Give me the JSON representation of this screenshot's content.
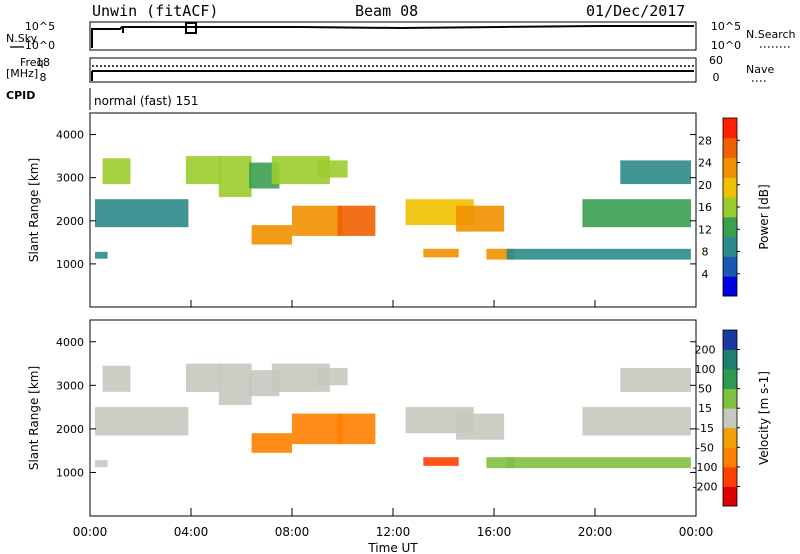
{
  "header": {
    "station": "Unwin (fitACF)",
    "beam": "Beam 08",
    "date": "01/Dec/2017"
  },
  "params_panel": {
    "nsky_label": "N.Sky",
    "nsearch_label": "N.Search",
    "nsky_ticks": [
      "10^5",
      "10^0"
    ],
    "nsearch_ticks": [
      "10^5",
      "10^0"
    ],
    "freq_label": "Freq.",
    "freq_unit": "[MHz]",
    "freq_ticks": [
      "18",
      "8"
    ],
    "nave_label": "Nave",
    "nave_ticks": [
      "60",
      "0"
    ],
    "cpid_label": "CPID",
    "cpid_value": "normal (fast) 151"
  },
  "x_axis": {
    "label": "Time UT",
    "ticks": [
      "00:00",
      "04:00",
      "08:00",
      "12:00",
      "16:00",
      "20:00",
      "00:00"
    ]
  },
  "chart_data": [
    {
      "type": "heatmap",
      "name": "power",
      "ylabel": "Slant Range [km]",
      "yticks": [
        "4000",
        "3000",
        "2000",
        "1000"
      ],
      "ylim": [
        0,
        4500
      ],
      "xlim": [
        0,
        24
      ],
      "colorbar": {
        "label": "Power [dB]",
        "ticks": [
          "28",
          "24",
          "20",
          "16",
          "12",
          "8",
          "4"
        ],
        "colors": [
          "#0000e0",
          "#1858b0",
          "#2c8a8a",
          "#3aa050",
          "#9ccc2c",
          "#f0c000",
          "#f09000",
          "#f06000",
          "#ff2000"
        ]
      },
      "regions": [
        {
          "t": [
            0.2,
            0.7
          ],
          "r": [
            1120,
            1280
          ],
          "level": 0.2
        },
        {
          "t": [
            0.2,
            3.9
          ],
          "r": [
            1850,
            2500
          ],
          "level": 0.3
        },
        {
          "t": [
            0.5,
            1.6
          ],
          "r": [
            2850,
            3450
          ],
          "level": 0.45
        },
        {
          "t": [
            3.8,
            5.2
          ],
          "r": [
            2850,
            3500
          ],
          "level": 0.55
        },
        {
          "t": [
            5.1,
            6.4
          ],
          "r": [
            2550,
            3500
          ],
          "level": 0.5
        },
        {
          "t": [
            6.3,
            7.5
          ],
          "r": [
            2750,
            3350
          ],
          "level": 0.35
        },
        {
          "t": [
            7.2,
            9.5
          ],
          "r": [
            2850,
            3500
          ],
          "level": 0.5
        },
        {
          "t": [
            9.0,
            10.2
          ],
          "r": [
            3000,
            3400
          ],
          "level": 0.55
        },
        {
          "t": [
            6.4,
            8.0
          ],
          "r": [
            1450,
            1900
          ],
          "level": 0.7
        },
        {
          "t": [
            8.0,
            10.0
          ],
          "r": [
            1650,
            2350
          ],
          "level": 0.8
        },
        {
          "t": [
            9.8,
            11.3
          ],
          "r": [
            1650,
            2350
          ],
          "level": 0.92
        },
        {
          "t": [
            12.5,
            15.2
          ],
          "r": [
            1900,
            2500
          ],
          "level": 0.6
        },
        {
          "t": [
            13.2,
            14.6
          ],
          "r": [
            1150,
            1350
          ],
          "level": 0.7
        },
        {
          "t": [
            14.5,
            16.4
          ],
          "r": [
            1750,
            2350
          ],
          "level": 0.75
        },
        {
          "t": [
            15.7,
            16.8
          ],
          "r": [
            1100,
            1350
          ],
          "level": 0.7
        },
        {
          "t": [
            16.5,
            23.8
          ],
          "r": [
            1100,
            1350
          ],
          "level": 0.3
        },
        {
          "t": [
            19.5,
            23.8
          ],
          "r": [
            1850,
            2500
          ],
          "level": 0.35
        },
        {
          "t": [
            21.0,
            23.8
          ],
          "r": [
            2850,
            3400
          ],
          "level": 0.3
        }
      ]
    },
    {
      "type": "heatmap",
      "name": "velocity",
      "ylabel": "Slant Range [km]",
      "yticks": [
        "4000",
        "3000",
        "2000",
        "1000"
      ],
      "ylim": [
        0,
        4500
      ],
      "xlim": [
        0,
        24
      ],
      "colorbar": {
        "label": "Velocity [m s-1]",
        "ticks": [
          "200",
          "100",
          "50",
          "15",
          "-15",
          "-50",
          "-100",
          "-200"
        ],
        "colors": [
          "#e00000",
          "#ff4000",
          "#ff8000",
          "#f0a000",
          "#c8c8c0",
          "#80c040",
          "#2c9a50",
          "#208070",
          "#1a3aa0"
        ]
      },
      "regions": [
        {
          "t": [
            0.2,
            0.7
          ],
          "r": [
            1120,
            1280
          ],
          "level": 0.55
        },
        {
          "t": [
            0.2,
            3.9
          ],
          "r": [
            1850,
            2500
          ],
          "level": 0.5
        },
        {
          "t": [
            0.5,
            1.6
          ],
          "r": [
            2850,
            3450
          ],
          "level": 0.5
        },
        {
          "t": [
            3.8,
            5.2
          ],
          "r": [
            2850,
            3500
          ],
          "level": 0.5
        },
        {
          "t": [
            5.1,
            6.4
          ],
          "r": [
            2550,
            3500
          ],
          "level": 0.5
        },
        {
          "t": [
            6.3,
            7.5
          ],
          "r": [
            2750,
            3350
          ],
          "level": 0.5
        },
        {
          "t": [
            7.2,
            9.5
          ],
          "r": [
            2850,
            3500
          ],
          "level": 0.5
        },
        {
          "t": [
            9.0,
            10.2
          ],
          "r": [
            3000,
            3400
          ],
          "level": 0.5
        },
        {
          "t": [
            6.4,
            8.0
          ],
          "r": [
            1450,
            1900
          ],
          "level": 0.3
        },
        {
          "t": [
            8.0,
            10.0
          ],
          "r": [
            1650,
            2350
          ],
          "level": 0.3
        },
        {
          "t": [
            9.8,
            11.3
          ],
          "r": [
            1650,
            2350
          ],
          "level": 0.3
        },
        {
          "t": [
            12.5,
            15.2
          ],
          "r": [
            1900,
            2500
          ],
          "level": 0.5
        },
        {
          "t": [
            13.2,
            14.6
          ],
          "r": [
            1150,
            1350
          ],
          "level": 0.15
        },
        {
          "t": [
            14.5,
            16.4
          ],
          "r": [
            1750,
            2350
          ],
          "level": 0.5
        },
        {
          "t": [
            15.7,
            16.8
          ],
          "r": [
            1100,
            1350
          ],
          "level": 0.65
        },
        {
          "t": [
            16.5,
            23.8
          ],
          "r": [
            1100,
            1350
          ],
          "level": 0.6
        },
        {
          "t": [
            19.5,
            23.8
          ],
          "r": [
            1850,
            2500
          ],
          "level": 0.5
        },
        {
          "t": [
            21.0,
            23.8
          ],
          "r": [
            2850,
            3400
          ],
          "level": 0.5
        }
      ]
    }
  ]
}
